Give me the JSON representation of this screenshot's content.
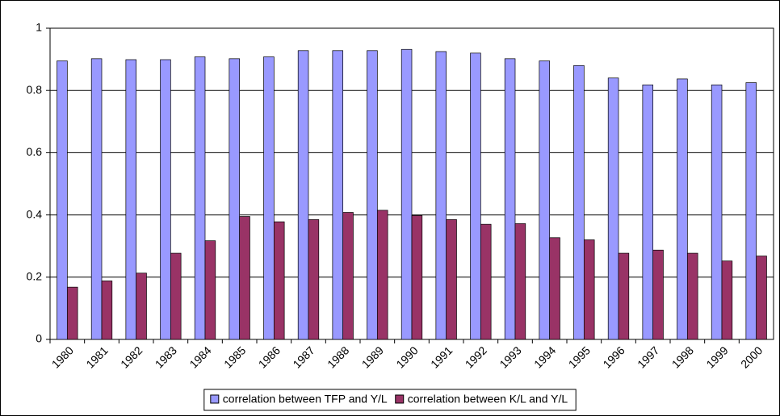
{
  "chart_data": {
    "type": "bar",
    "categories": [
      "1980",
      "1981",
      "1982",
      "1983",
      "1984",
      "1985",
      "1986",
      "1987",
      "1988",
      "1989",
      "1990",
      "1991",
      "1992",
      "1993",
      "1994",
      "1995",
      "1996",
      "1997",
      "1998",
      "1999",
      "2000"
    ],
    "series": [
      {
        "name": "correlation between TFP and Y/L",
        "color": "#9999ff",
        "values": [
          0.895,
          0.902,
          0.899,
          0.899,
          0.908,
          0.902,
          0.908,
          0.928,
          0.928,
          0.928,
          0.932,
          0.925,
          0.92,
          0.902,
          0.895,
          0.88,
          0.84,
          0.818,
          0.837,
          0.818,
          0.825
        ]
      },
      {
        "name": "correlation between K/L and Y/L",
        "color": "#993366",
        "values": [
          0.168,
          0.188,
          0.213,
          0.277,
          0.317,
          0.395,
          0.378,
          0.385,
          0.408,
          0.415,
          0.398,
          0.385,
          0.37,
          0.372,
          0.327,
          0.32,
          0.277,
          0.287,
          0.277,
          0.252,
          0.268
        ]
      }
    ],
    "ylim": [
      0,
      1
    ],
    "yticks": [
      0,
      0.2,
      0.4,
      0.6,
      0.8,
      1
    ],
    "grid": true,
    "legend": "bottom"
  }
}
